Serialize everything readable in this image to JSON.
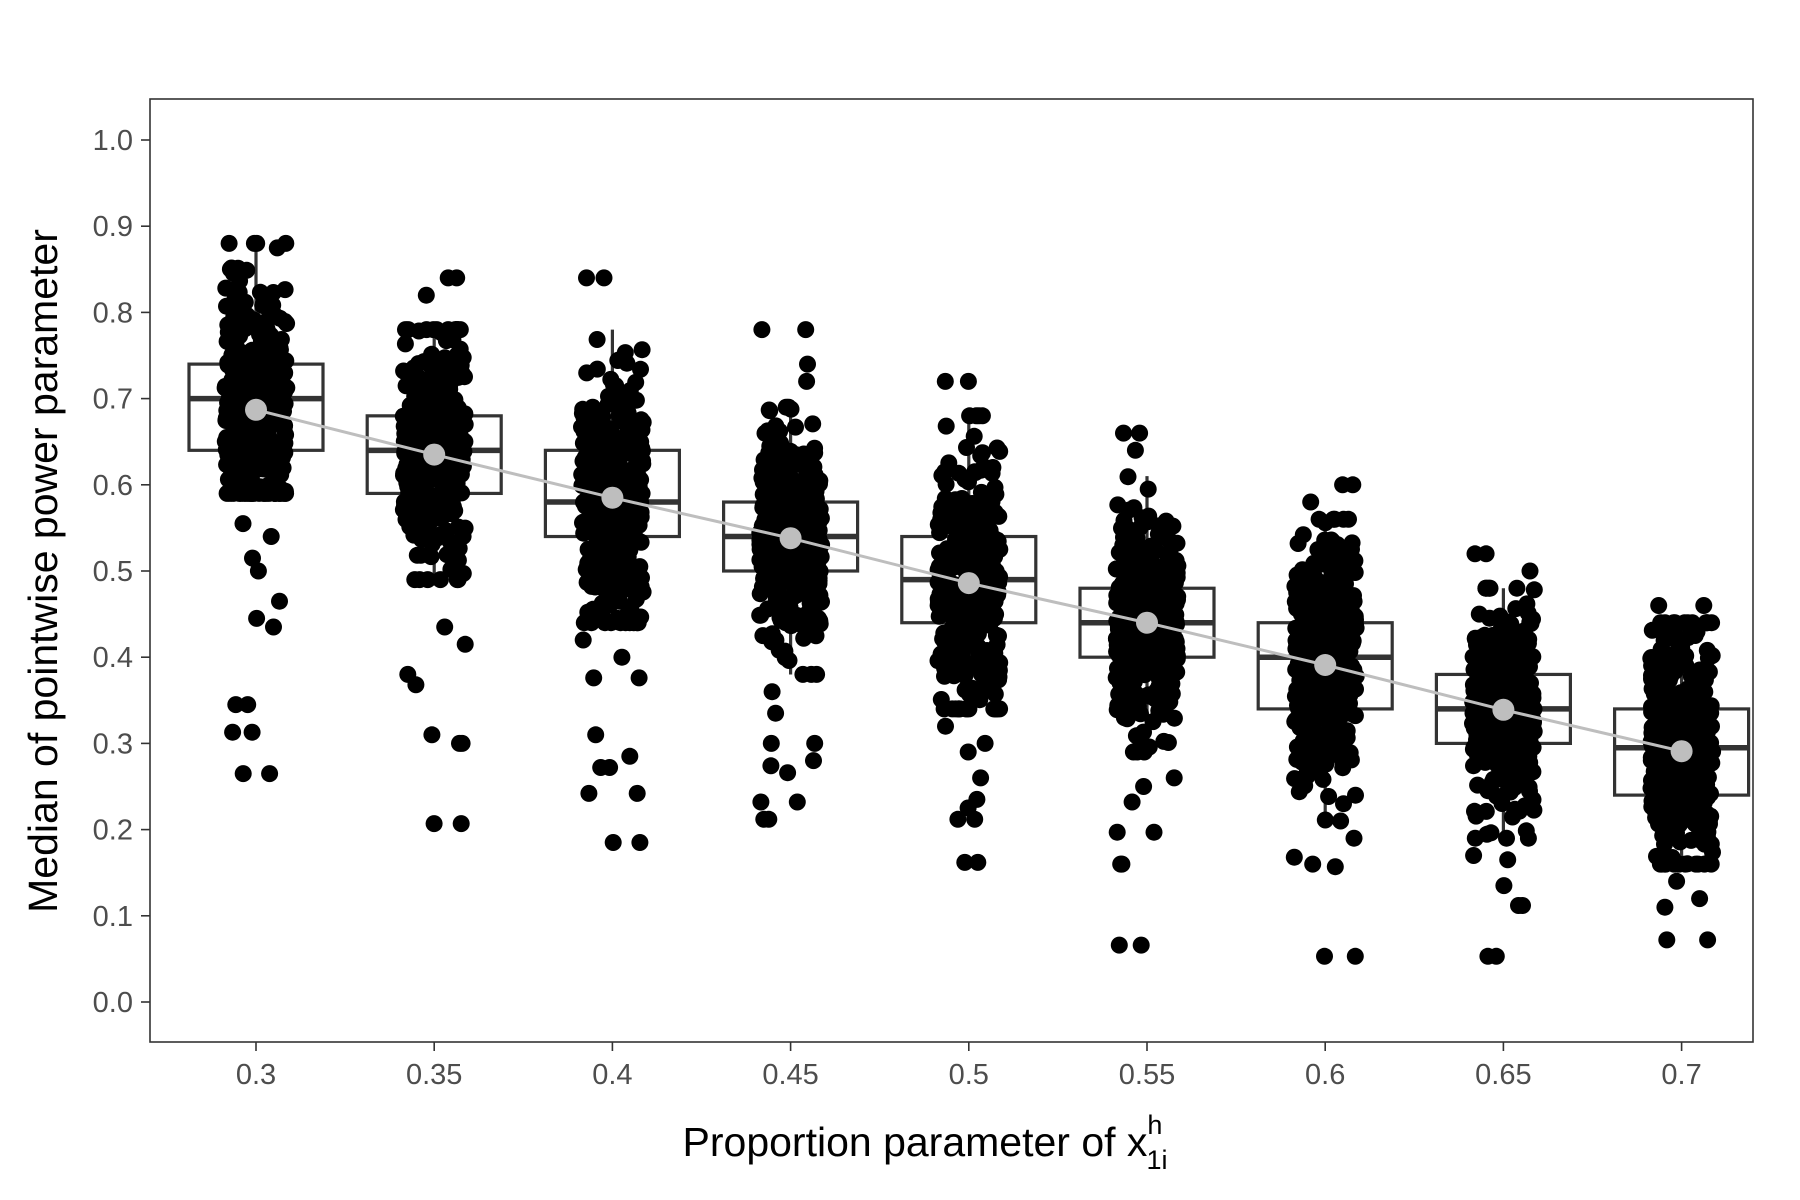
{
  "chart_data": {
    "type": "boxplot-with-jitter",
    "xlabel": "Proportion parameter of x",
    "xlabel_sup": "h",
    "xlabel_sub": "1i",
    "ylabel": "Median of pointwise power parameter",
    "ylim": [
      -0.05,
      1.05
    ],
    "yticks": [
      "0.0",
      "0.1",
      "0.2",
      "0.3",
      "0.4",
      "0.5",
      "0.6",
      "0.7",
      "0.8",
      "0.9",
      "1.0"
    ],
    "categories": [
      "0.3",
      "0.35",
      "0.4",
      "0.45",
      "0.5",
      "0.55",
      "0.6",
      "0.65",
      "0.7"
    ],
    "grid": false,
    "boxes": [
      {
        "q1": 0.64,
        "median": 0.7,
        "q3": 0.74,
        "whisker_low": 0.59,
        "whisker_high": 0.88,
        "outliers": [
          0.555,
          0.54,
          0.515,
          0.5,
          0.465,
          0.445,
          0.435,
          0.345,
          0.345,
          0.313,
          0.313,
          0.265,
          0.265
        ]
      },
      {
        "q1": 0.59,
        "median": 0.64,
        "q3": 0.68,
        "whisker_low": 0.49,
        "whisker_high": 0.78,
        "outliers": [
          0.84,
          0.84,
          0.82,
          0.435,
          0.415,
          0.38,
          0.368,
          0.31,
          0.3,
          0.3,
          0.207,
          0.207
        ]
      },
      {
        "q1": 0.54,
        "median": 0.58,
        "q3": 0.64,
        "whisker_low": 0.44,
        "whisker_high": 0.78,
        "outliers": [
          0.84,
          0.84,
          0.42,
          0.4,
          0.376,
          0.376,
          0.31,
          0.285,
          0.272,
          0.272,
          0.242,
          0.242,
          0.185,
          0.185
        ]
      },
      {
        "q1": 0.5,
        "median": 0.54,
        "q3": 0.58,
        "whisker_low": 0.38,
        "whisker_high": 0.69,
        "outliers": [
          0.78,
          0.78,
          0.74,
          0.72,
          0.36,
          0.335,
          0.3,
          0.3,
          0.28,
          0.274,
          0.266,
          0.232,
          0.232,
          0.212,
          0.212
        ]
      },
      {
        "q1": 0.44,
        "median": 0.49,
        "q3": 0.54,
        "whisker_low": 0.34,
        "whisker_high": 0.68,
        "outliers": [
          0.72,
          0.72,
          0.32,
          0.3,
          0.29,
          0.26,
          0.235,
          0.225,
          0.212,
          0.212,
          0.162,
          0.162
        ]
      },
      {
        "q1": 0.4,
        "median": 0.44,
        "q3": 0.48,
        "whisker_low": 0.29,
        "whisker_high": 0.61,
        "outliers": [
          0.66,
          0.66,
          0.64,
          0.26,
          0.25,
          0.232,
          0.197,
          0.197,
          0.16,
          0.16,
          0.066,
          0.066
        ]
      },
      {
        "q1": 0.34,
        "median": 0.4,
        "q3": 0.44,
        "whisker_low": 0.21,
        "whisker_high": 0.56,
        "outliers": [
          0.6,
          0.6,
          0.58,
          0.19,
          0.168,
          0.16,
          0.157,
          0.053,
          0.053
        ]
      },
      {
        "q1": 0.3,
        "median": 0.34,
        "q3": 0.38,
        "whisker_low": 0.19,
        "whisker_high": 0.48,
        "outliers": [
          0.52,
          0.52,
          0.5,
          0.17,
          0.165,
          0.135,
          0.112,
          0.112,
          0.053,
          0.053
        ]
      },
      {
        "q1": 0.24,
        "median": 0.295,
        "q3": 0.34,
        "whisker_low": 0.16,
        "whisker_high": 0.44,
        "outliers": [
          0.46,
          0.46,
          0.14,
          0.12,
          0.11,
          0.072,
          0.072
        ]
      }
    ],
    "mean_line": {
      "color": "#bebebe",
      "values": [
        0.687,
        0.635,
        0.585,
        0.538,
        0.486,
        0.44,
        0.391,
        0.339,
        0.291
      ]
    },
    "point_color": "#000000",
    "box_color": "#333333"
  }
}
